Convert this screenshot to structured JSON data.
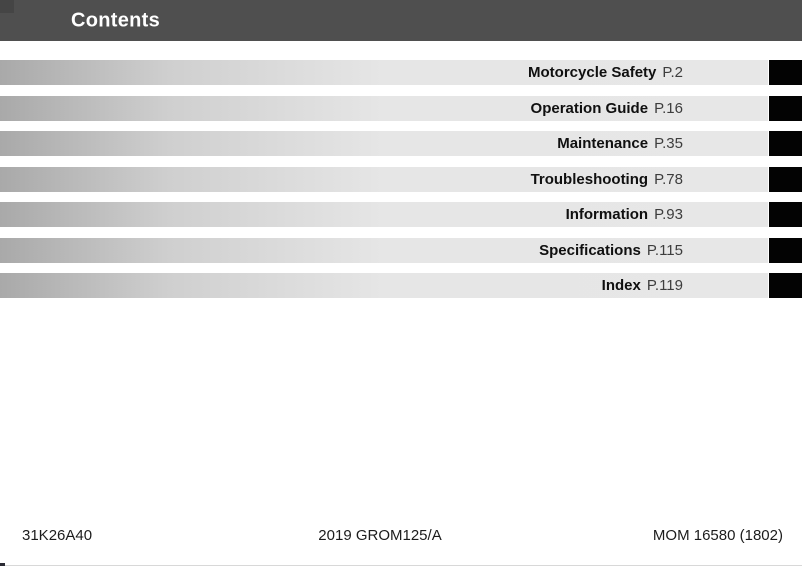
{
  "header": {
    "title": "Contents"
  },
  "toc": {
    "items": [
      {
        "label": "Motorcycle Safety",
        "page": "P.2"
      },
      {
        "label": "Operation Guide",
        "page": "P.16"
      },
      {
        "label": "Maintenance",
        "page": "P.35"
      },
      {
        "label": "Troubleshooting",
        "page": "P.78"
      },
      {
        "label": "Information",
        "page": "P.93"
      },
      {
        "label": "Specifications",
        "page": "P.115"
      },
      {
        "label": "Index",
        "page": "P.119"
      }
    ]
  },
  "footer": {
    "left": "31K26A40",
    "center": "2019 GROM125/A",
    "right": "MOM 16580 (1802)"
  },
  "colors": {
    "header_bg": "#4f4f4f",
    "bar_gradient_start": "#a9a9a9",
    "bar_gradient_end": "#e7e7e7",
    "tab_color": "#030303",
    "bottom_rule": "#d8d8d8"
  }
}
